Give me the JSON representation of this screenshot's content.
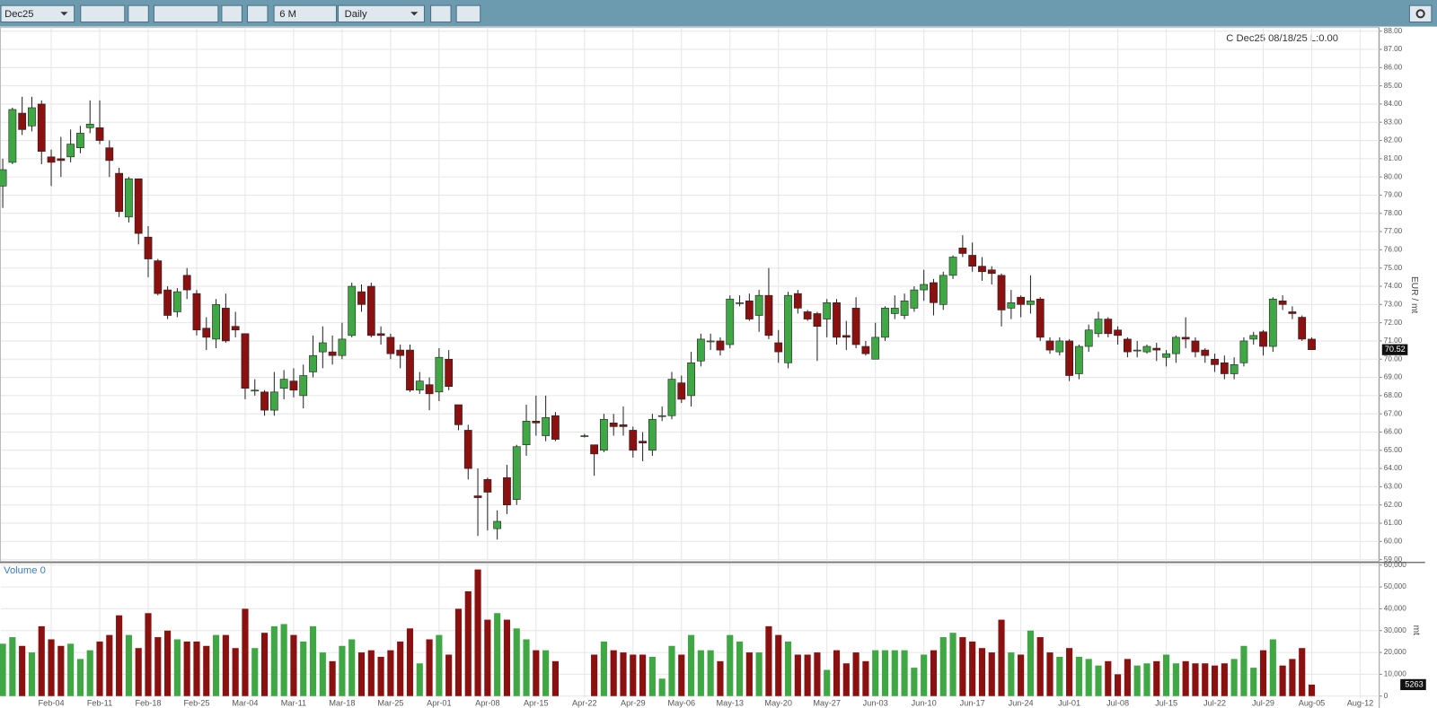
{
  "toolbar": {
    "contract": "Dec25",
    "range": "6 M",
    "interval": "Daily"
  },
  "chart_data": {
    "type": "candlestick",
    "legend": "C Dec25 08/18/25 L:0.00",
    "ylabel": "EUR / mt",
    "up_color": "#3fa845",
    "down_color": "#8b1010",
    "grid": true,
    "ylim": [
      59,
      88
    ],
    "yticks": [
      {
        "value": 59,
        "label": "59.00"
      },
      {
        "value": 60,
        "label": "60.00"
      },
      {
        "value": 61,
        "label": "61.00"
      },
      {
        "value": 62,
        "label": "62.00"
      },
      {
        "value": 63,
        "label": "63.00"
      },
      {
        "value": 64,
        "label": "64.00"
      },
      {
        "value": 65,
        "label": "65.00"
      },
      {
        "value": 66,
        "label": "66.00"
      },
      {
        "value": 67,
        "label": "67.00"
      },
      {
        "value": 68,
        "label": "68.00"
      },
      {
        "value": 69,
        "label": "69.00"
      },
      {
        "value": 70,
        "label": "70.00"
      },
      {
        "value": 71,
        "label": "71.00"
      },
      {
        "value": 72,
        "label": "72.00"
      },
      {
        "value": 73,
        "label": "73.00"
      },
      {
        "value": 74,
        "label": "74.00"
      },
      {
        "value": 75,
        "label": "75.00"
      },
      {
        "value": 76,
        "label": "76.00"
      },
      {
        "value": 77,
        "label": "77.00"
      },
      {
        "value": 78,
        "label": "78.00"
      },
      {
        "value": 79,
        "label": "79.00"
      },
      {
        "value": 80,
        "label": "80.00"
      },
      {
        "value": 81,
        "label": "81.00"
      },
      {
        "value": 82,
        "label": "82.00"
      },
      {
        "value": 83,
        "label": "83.00"
      },
      {
        "value": 84,
        "label": "84.00"
      },
      {
        "value": 85,
        "label": "85.00"
      },
      {
        "value": 86,
        "label": "86.00"
      },
      {
        "value": 87,
        "label": "87.00"
      },
      {
        "value": 88,
        "label": "88.00"
      }
    ],
    "categories": [
      null,
      null,
      null,
      null,
      null,
      "Feb-04",
      null,
      null,
      null,
      null,
      "Feb-11",
      null,
      null,
      null,
      null,
      "Feb-18",
      null,
      null,
      null,
      null,
      "Feb-25",
      null,
      null,
      null,
      null,
      "Mar-04",
      null,
      null,
      null,
      null,
      "Mar-11",
      null,
      null,
      null,
      null,
      "Mar-18",
      null,
      null,
      null,
      null,
      "Mar-25",
      null,
      null,
      null,
      null,
      "Apr-01",
      null,
      null,
      null,
      null,
      "Apr-08",
      null,
      null,
      null,
      null,
      "Apr-15",
      null,
      null,
      null,
      null,
      "Apr-22",
      null,
      null,
      null,
      null,
      "Apr-29",
      null,
      null,
      null,
      null,
      "May-06",
      null,
      null,
      null,
      null,
      "May-13",
      null,
      null,
      null,
      null,
      "May-20",
      null,
      null,
      null,
      null,
      "May-27",
      null,
      null,
      null,
      null,
      "Jun-03",
      null,
      null,
      null,
      null,
      "Jun-10",
      null,
      null,
      null,
      null,
      "Jun-17",
      null,
      null,
      null,
      null,
      "Jun-24",
      null,
      null,
      null,
      null,
      "Jul-01",
      null,
      null,
      null,
      null,
      "Jul-08",
      null,
      null,
      null,
      null,
      "Jul-15",
      null,
      null,
      null,
      null,
      "Jul-22",
      null,
      null,
      null,
      null,
      "Jul-29",
      null,
      null,
      null,
      null,
      "Aug-05",
      null,
      null,
      null,
      null,
      "Aug-12"
    ],
    "open": [
      79.5,
      80.8,
      83.5,
      82.8,
      84,
      81.1,
      81,
      81.1,
      81.6,
      82.7,
      82.7,
      81.6,
      80.2,
      77.8,
      79.9,
      76.7,
      75.4,
      73.8,
      72.6,
      74.6,
      73.6,
      71.7,
      71.1,
      72.8,
      71.8,
      71.4,
      68.3,
      68.2,
      67.2,
      68.4,
      68.8,
      68,
      69.3,
      70.4,
      70.4,
      70.2,
      71.3,
      73.7,
      74,
      71.4,
      71.2,
      70.5,
      70.5,
      68.3,
      68.6,
      68.2,
      70,
      67.5,
      66.1,
      62.5,
      63.4,
      60.7,
      63.5,
      62.3,
      65.3,
      66.6,
      65.8,
      66.9,
      null,
      null,
      65.8,
      65.3,
      65,
      66.5,
      66.4,
      66.1,
      65.5,
      65,
      66.9,
      66.9,
      68.7,
      68,
      69.9,
      71,
      71,
      70.8,
      73.1,
      73.2,
      72.4,
      73.5,
      70.9,
      69.8,
      73.6,
      72.6,
      72.5,
      72.2,
      73.1,
      71.3,
      72.8,
      70.7,
      70,
      71.2,
      72.5,
      72.4,
      72.8,
      73.8,
      74.2,
      73,
      74.6,
      76.1,
      75.7,
      75.1,
      74.9,
      74.6,
      72.8,
      73.4,
      73,
      73.3,
      71,
      70.4,
      71,
      69.2,
      70.7,
      71.4,
      72.2,
      71.6,
      71.1,
      70.5,
      70.4,
      70.6,
      70.1,
      70.3,
      71.2,
      71,
      70.5,
      70,
      69.8,
      69.2,
      69.8,
      71.1,
      71.5,
      70.7,
      73.2,
      72.6,
      72.3,
      71.1,
      null,
      null,
      null,
      null,
      null
    ],
    "high": [
      81,
      83.8,
      84.4,
      84.4,
      84.2,
      81.5,
      82.2,
      82.6,
      82.8,
      84.2,
      84.2,
      82,
      80.5,
      80,
      79.9,
      77.3,
      75.5,
      74,
      73.9,
      75,
      73.8,
      72.3,
      73.3,
      73.6,
      72.6,
      71.4,
      68.9,
      68.3,
      69.3,
      69.4,
      69.5,
      69.7,
      71.3,
      71.8,
      71.3,
      72,
      74.2,
      74.1,
      74.2,
      71.8,
      71.4,
      70.8,
      70.8,
      69.3,
      69,
      70.6,
      70.5,
      67.5,
      66.4,
      64,
      63.5,
      61.7,
      64.2,
      65.3,
      67.5,
      68,
      68,
      67.1,
      null,
      null,
      65.9,
      65.3,
      67,
      67,
      67.4,
      66.3,
      66,
      67,
      67.4,
      69.3,
      69.1,
      70.4,
      71.4,
      71.4,
      71.2,
      73.5,
      73.5,
      73.6,
      73.8,
      75,
      71.6,
      73.7,
      73.8,
      72.7,
      72.6,
      73.3,
      73.3,
      72.1,
      73.4,
      71,
      72,
      72.9,
      73.5,
      73.6,
      74,
      74.9,
      74.4,
      74.8,
      75.7,
      76.8,
      76.4,
      75.6,
      75.1,
      74.7,
      73.8,
      73.5,
      74.6,
      73.4,
      71.2,
      71.2,
      71.1,
      70.8,
      71.9,
      72.6,
      72.3,
      71.8,
      71.2,
      71,
      70.8,
      70.9,
      70.5,
      71.3,
      72.3,
      71.2,
      70.6,
      70.3,
      70.2,
      70.1,
      71.2,
      71.5,
      71.6,
      73.4,
      73.5,
      72.9,
      72.4,
      71.2,
      null,
      null,
      null,
      null,
      null
    ],
    "low": [
      78.3,
      80.7,
      82.3,
      82.5,
      80.7,
      79.5,
      80,
      80.8,
      81.3,
      82.4,
      81.8,
      80,
      77.8,
      77.5,
      76.3,
      74.5,
      73.5,
      72.2,
      72.3,
      73.3,
      71.3,
      70.5,
      70.6,
      70.9,
      71.2,
      67.8,
      68,
      66.9,
      66.9,
      67.8,
      67.9,
      67.3,
      69,
      69.5,
      69.7,
      70,
      71.2,
      72.6,
      71.2,
      70.8,
      70,
      69.5,
      68.2,
      68.1,
      67.2,
      67.7,
      68.3,
      66.1,
      63.4,
      60.3,
      60.6,
      60.1,
      61.5,
      62,
      64.7,
      65.8,
      65.5,
      65.5,
      null,
      null,
      65.7,
      63.6,
      64.9,
      65.8,
      65.8,
      64.6,
      64.4,
      64.7,
      66.6,
      66.7,
      67.6,
      67.4,
      69.6,
      70.5,
      70.2,
      70.6,
      72.9,
      72.1,
      71.5,
      71.1,
      69.8,
      69.5,
      72.5,
      72.1,
      69.9,
      71.2,
      70.8,
      70.5,
      70.6,
      70.2,
      70,
      71,
      72.2,
      72.2,
      72.6,
      73.2,
      72.4,
      72.7,
      74.4,
      75.6,
      74.8,
      74.3,
      74.1,
      71.8,
      72.2,
      72.3,
      72.5,
      71,
      70.3,
      70.2,
      68.8,
      68.9,
      70.4,
      71.2,
      71.2,
      70.8,
      70.1,
      70.1,
      70.3,
      69.9,
      69.6,
      69.8,
      70.6,
      70.1,
      69.8,
      69.3,
      68.9,
      68.9,
      69.6,
      70.8,
      70.2,
      70.4,
      72.7,
      72.2,
      71,
      70.5,
      null,
      null,
      null,
      null,
      null
    ],
    "close": [
      80.4,
      83.7,
      82.6,
      83.8,
      81.4,
      80.8,
      80.9,
      81.8,
      82.4,
      82.9,
      82,
      80.9,
      78.1,
      79.9,
      76.9,
      75.5,
      73.6,
      72.4,
      73.7,
      73.8,
      71.6,
      71.2,
      73,
      71,
      71.6,
      68.4,
      68.3,
      67.2,
      68.2,
      68.9,
      68.3,
      69.1,
      70.2,
      70.9,
      70.2,
      71.1,
      74,
      73,
      71.3,
      71.3,
      70.3,
      70.2,
      68.3,
      68.8,
      68.1,
      70.1,
      68.5,
      66.4,
      64,
      62.4,
      62.7,
      61.1,
      62,
      65.2,
      66.6,
      66.5,
      66.8,
      65.6,
      null,
      null,
      65.8,
      64.8,
      66.7,
      66.3,
      66.3,
      65,
      65.4,
      66.7,
      66.9,
      68.9,
      67.8,
      69.8,
      71.1,
      71,
      70.5,
      73.3,
      73.1,
      72.2,
      73.5,
      71.3,
      70.4,
      73.5,
      72.8,
      72.2,
      71.8,
      73.1,
      71.2,
      71.2,
      70.8,
      70.3,
      71.2,
      72.8,
      72.8,
      73.2,
      73.8,
      74.1,
      73.1,
      74.6,
      75.6,
      75.8,
      75.1,
      74.8,
      74.7,
      72.7,
      73.1,
      73,
      73.2,
      71.2,
      70.5,
      71,
      69.1,
      70.7,
      71.6,
      72.2,
      71.4,
      71.3,
      70.4,
      70.5,
      70.7,
      70.5,
      70.3,
      71.2,
      71.1,
      70.4,
      70.2,
      69.7,
      69.2,
      69.7,
      71,
      71.3,
      70.7,
      73.3,
      73,
      72.5,
      71.1,
      70.52,
      null,
      null,
      null,
      null,
      null
    ],
    "volume": {
      "label": "Volume 0",
      "ylabel": "mt",
      "ylim": [
        0,
        60000
      ],
      "yticks": [
        0,
        {
          "value": 10000,
          "label": "10,000"
        },
        {
          "value": 20000,
          "label": "20,000"
        },
        {
          "value": 30000,
          "label": "30,000"
        },
        {
          "value": 40000,
          "label": "40,000"
        },
        {
          "value": 50000,
          "label": "50,000"
        },
        {
          "value": 60000,
          "label": "60,000"
        }
      ],
      "values": [
        24000,
        27000,
        23000,
        20000,
        32000,
        26000,
        23000,
        24000,
        17000,
        21000,
        25000,
        28000,
        37000,
        28000,
        22000,
        38000,
        27000,
        30000,
        26000,
        25000,
        25000,
        23000,
        28000,
        28000,
        22000,
        40000,
        22000,
        29000,
        32000,
        33000,
        28000,
        25000,
        32000,
        20000,
        16000,
        23000,
        26000,
        20000,
        21000,
        18000,
        21000,
        25000,
        31000,
        15000,
        26000,
        28000,
        19000,
        40000,
        48000,
        58000,
        35000,
        38000,
        35000,
        31000,
        26000,
        21000,
        21000,
        16000,
        null,
        null,
        null,
        19000,
        25000,
        21000,
        20000,
        19000,
        19000,
        18000,
        8000,
        23000,
        19000,
        28000,
        21000,
        21000,
        16000,
        28000,
        25000,
        20000,
        20000,
        32000,
        28000,
        25000,
        19000,
        19000,
        20000,
        12000,
        21000,
        15000,
        20000,
        16000,
        21000,
        21000,
        21000,
        21000,
        13000,
        19000,
        21000,
        27000,
        29000,
        27000,
        25000,
        22000,
        20000,
        35000,
        20000,
        19000,
        30000,
        27000,
        20000,
        18000,
        22000,
        18000,
        17000,
        14000,
        16000,
        10000,
        17000,
        14000,
        15000,
        16000,
        19000,
        15000,
        16000,
        15000,
        15000,
        14000,
        15000,
        17000,
        23000,
        13000,
        21000,
        26000,
        14000,
        17000,
        22000,
        5263,
        null,
        null,
        null,
        null,
        null
      ]
    }
  }
}
